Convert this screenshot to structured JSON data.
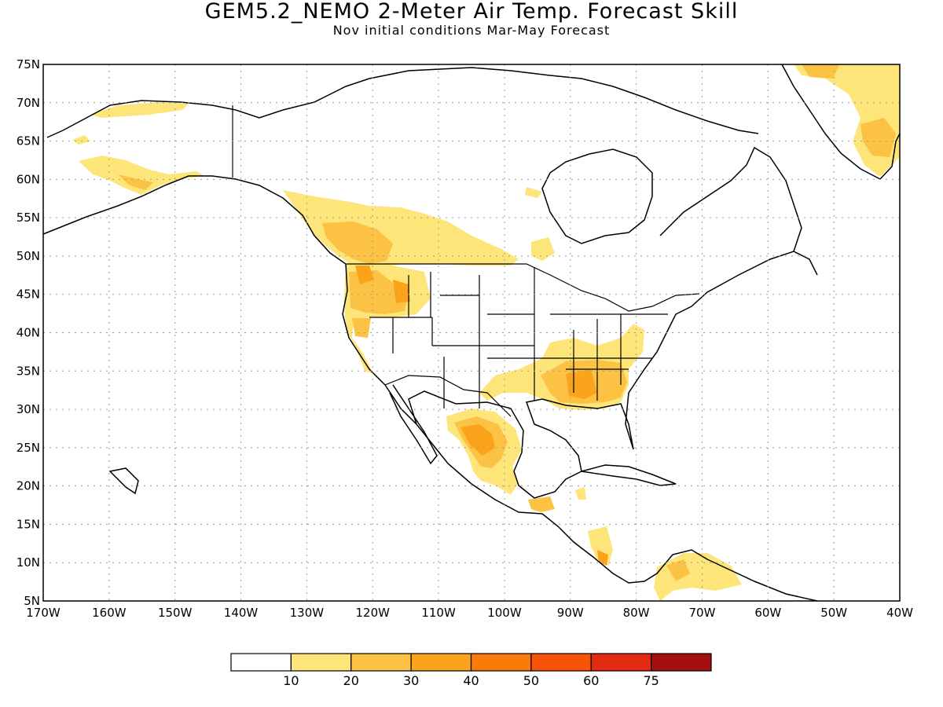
{
  "title": "GEM5.2_NEMO 2-Meter Air Temp. Forecast Skill",
  "subtitle": "Nov initial conditions  Mar-May Forecast",
  "lat_labels": [
    "75N",
    "70N",
    "65N",
    "60N",
    "55N",
    "50N",
    "45N",
    "40N",
    "35N",
    "30N",
    "25N",
    "20N",
    "15N",
    "10N",
    "5N"
  ],
  "lon_labels": [
    "170W",
    "160W",
    "150W",
    "140W",
    "130W",
    "120W",
    "110W",
    "100W",
    "90W",
    "80W",
    "70W",
    "60W",
    "50W",
    "40W"
  ],
  "colorbar": {
    "labels": [
      "10",
      "20",
      "30",
      "40",
      "50",
      "60",
      "75"
    ],
    "colors": [
      "#ffffff",
      "#fde57a",
      "#fcc244",
      "#fba41b",
      "#f97c0b",
      "#f75408",
      "#e12a12",
      "#a50f0f"
    ]
  },
  "colors": {
    "land_outline": "#000000",
    "grid": "#9a9a9a"
  }
}
